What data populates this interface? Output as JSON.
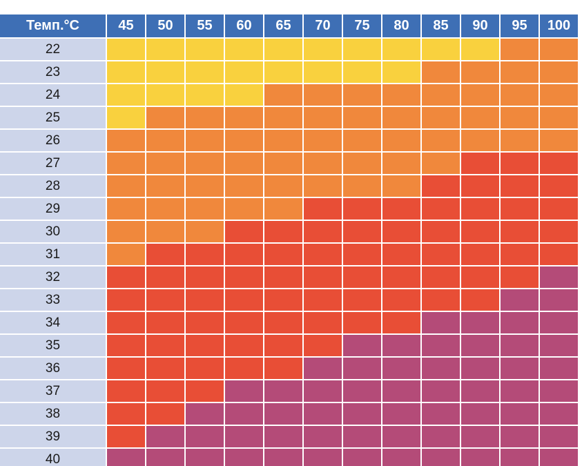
{
  "table": {
    "header": [
      "Темп.°C",
      "45",
      "50",
      "55",
      "60",
      "65",
      "70",
      "75",
      "80",
      "85",
      "90",
      "95",
      "100"
    ],
    "rows": [
      {
        "label": "22",
        "colors": [
          "#f9d13e",
          "#f9d13e",
          "#f9d13e",
          "#f9d13e",
          "#f9d13e",
          "#f9d13e",
          "#f9d13e",
          "#f9d13e",
          "#f9d13e",
          "#f9d13e",
          "#f0883c",
          "#f0883c"
        ]
      },
      {
        "label": "23",
        "colors": [
          "#f9d13e",
          "#f9d13e",
          "#f9d13e",
          "#f9d13e",
          "#f9d13e",
          "#f9d13e",
          "#f9d13e",
          "#f9d13e",
          "#f0883c",
          "#f0883c",
          "#f0883c",
          "#f0883c"
        ]
      },
      {
        "label": "24",
        "colors": [
          "#f9d13e",
          "#f9d13e",
          "#f9d13e",
          "#f9d13e",
          "#f0883c",
          "#f0883c",
          "#f0883c",
          "#f0883c",
          "#f0883c",
          "#f0883c",
          "#f0883c",
          "#f0883c"
        ]
      },
      {
        "label": "25",
        "colors": [
          "#f9d13e",
          "#f0883c",
          "#f0883c",
          "#f0883c",
          "#f0883c",
          "#f0883c",
          "#f0883c",
          "#f0883c",
          "#f0883c",
          "#f0883c",
          "#f0883c",
          "#f0883c"
        ]
      },
      {
        "label": "26",
        "colors": [
          "#f0883c",
          "#f0883c",
          "#f0883c",
          "#f0883c",
          "#f0883c",
          "#f0883c",
          "#f0883c",
          "#f0883c",
          "#f0883c",
          "#f0883c",
          "#f0883c",
          "#f0883c"
        ]
      },
      {
        "label": "27",
        "colors": [
          "#f0883c",
          "#f0883c",
          "#f0883c",
          "#f0883c",
          "#f0883c",
          "#f0883c",
          "#f0883c",
          "#f0883c",
          "#f0883c",
          "#e84e36",
          "#e84e36",
          "#e84e36"
        ]
      },
      {
        "label": "28",
        "colors": [
          "#f0883c",
          "#f0883c",
          "#f0883c",
          "#f0883c",
          "#f0883c",
          "#f0883c",
          "#f0883c",
          "#f0883c",
          "#e84e36",
          "#e84e36",
          "#e84e36",
          "#e84e36"
        ]
      },
      {
        "label": "29",
        "colors": [
          "#f0883c",
          "#f0883c",
          "#f0883c",
          "#f0883c",
          "#f0883c",
          "#e84e36",
          "#e84e36",
          "#e84e36",
          "#e84e36",
          "#e84e36",
          "#e84e36",
          "#e84e36"
        ]
      },
      {
        "label": "30",
        "colors": [
          "#f0883c",
          "#f0883c",
          "#f0883c",
          "#e84e36",
          "#e84e36",
          "#e84e36",
          "#e84e36",
          "#e84e36",
          "#e84e36",
          "#e84e36",
          "#e84e36",
          "#e84e36"
        ]
      },
      {
        "label": "31",
        "colors": [
          "#f0883c",
          "#e84e36",
          "#e84e36",
          "#e84e36",
          "#e84e36",
          "#e84e36",
          "#e84e36",
          "#e84e36",
          "#e84e36",
          "#e84e36",
          "#e84e36",
          "#e84e36"
        ]
      },
      {
        "label": "32",
        "colors": [
          "#e84e36",
          "#e84e36",
          "#e84e36",
          "#e84e36",
          "#e84e36",
          "#e84e36",
          "#e84e36",
          "#e84e36",
          "#e84e36",
          "#e84e36",
          "#e84e36",
          "#b44b78"
        ]
      },
      {
        "label": "33",
        "colors": [
          "#e84e36",
          "#e84e36",
          "#e84e36",
          "#e84e36",
          "#e84e36",
          "#e84e36",
          "#e84e36",
          "#e84e36",
          "#e84e36",
          "#e84e36",
          "#b44b78",
          "#b44b78"
        ]
      },
      {
        "label": "34",
        "colors": [
          "#e84e36",
          "#e84e36",
          "#e84e36",
          "#e84e36",
          "#e84e36",
          "#e84e36",
          "#e84e36",
          "#e84e36",
          "#b44b78",
          "#b44b78",
          "#b44b78",
          "#b44b78"
        ]
      },
      {
        "label": "35",
        "colors": [
          "#e84e36",
          "#e84e36",
          "#e84e36",
          "#e84e36",
          "#e84e36",
          "#e84e36",
          "#b44b78",
          "#b44b78",
          "#b44b78",
          "#b44b78",
          "#b44b78",
          "#b44b78"
        ]
      },
      {
        "label": "36",
        "colors": [
          "#e84e36",
          "#e84e36",
          "#e84e36",
          "#e84e36",
          "#e84e36",
          "#b44b78",
          "#b44b78",
          "#b44b78",
          "#b44b78",
          "#b44b78",
          "#b44b78",
          "#b44b78"
        ]
      },
      {
        "label": "37",
        "colors": [
          "#e84e36",
          "#e84e36",
          "#e84e36",
          "#b44b78",
          "#b44b78",
          "#b44b78",
          "#b44b78",
          "#b44b78",
          "#b44b78",
          "#b44b78",
          "#b44b78",
          "#b44b78"
        ]
      },
      {
        "label": "38",
        "colors": [
          "#e84e36",
          "#e84e36",
          "#b44b78",
          "#b44b78",
          "#b44b78",
          "#b44b78",
          "#b44b78",
          "#b44b78",
          "#b44b78",
          "#b44b78",
          "#b44b78",
          "#b44b78"
        ]
      },
      {
        "label": "39",
        "colors": [
          "#e84e36",
          "#b44b78",
          "#b44b78",
          "#b44b78",
          "#b44b78",
          "#b44b78",
          "#b44b78",
          "#b44b78",
          "#b44b78",
          "#b44b78",
          "#b44b78",
          "#b44b78"
        ]
      },
      {
        "label": "40",
        "colors": [
          "#b44b78",
          "#b44b78",
          "#b44b78",
          "#b44b78",
          "#b44b78",
          "#b44b78",
          "#b44b78",
          "#b44b78",
          "#b44b78",
          "#b44b78",
          "#b44b78",
          "#b44b78"
        ]
      }
    ]
  }
}
